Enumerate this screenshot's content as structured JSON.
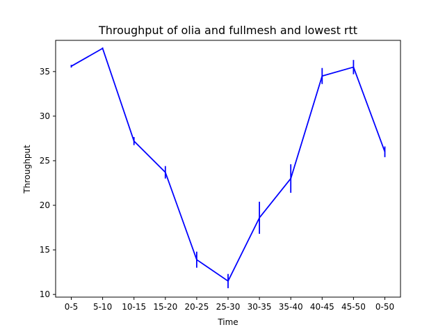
{
  "chart_data": {
    "type": "line",
    "title": "Throughput of olia and fullmesh and lowest rtt",
    "xlabel": "Time",
    "ylabel": "Throughput",
    "categories": [
      "0-5",
      "5-10",
      "10-15",
      "15-20",
      "20-25",
      "25-30",
      "30-35",
      "35-40",
      "40-45",
      "45-50",
      "0-50"
    ],
    "ylim": [
      9.7,
      38.5
    ],
    "yticks": [
      10,
      15,
      20,
      25,
      30,
      35
    ],
    "grid": false,
    "series": [
      {
        "color": "#0000ff",
        "values": [
          35.6,
          37.6,
          27.2,
          23.7,
          13.9,
          11.5,
          18.6,
          23.0,
          34.5,
          35.5,
          26.0
        ],
        "errors": [
          0.15,
          0.1,
          0.45,
          0.7,
          0.9,
          0.8,
          1.8,
          1.6,
          0.9,
          0.8,
          0.6
        ]
      }
    ]
  }
}
